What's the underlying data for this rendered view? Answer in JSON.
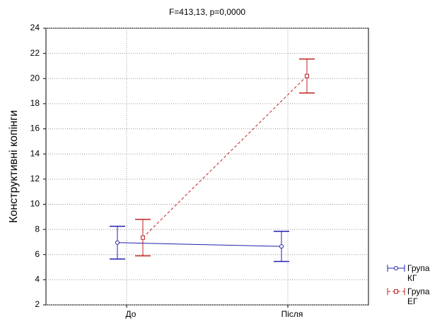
{
  "chart_data": {
    "type": "line",
    "title": "F=413,13, p=0,0000",
    "y_label": "Конструктивні копінги",
    "categories": [
      "До",
      "Після"
    ],
    "series": [
      {
        "name": "Група КГ",
        "color": "#2020b0",
        "values": [
          6.95,
          6.65
        ],
        "errors": [
          1.3,
          1.2
        ],
        "marker": "circle",
        "dash": false
      },
      {
        "name": "Група ЕГ",
        "color": "#c02020",
        "values": [
          7.35,
          20.2
        ],
        "errors": [
          1.45,
          1.35
        ],
        "marker": "square",
        "dash": true
      }
    ],
    "ylim": [
      2,
      24
    ],
    "yticks": [
      2,
      4,
      6,
      8,
      10,
      12,
      14,
      16,
      18,
      20,
      22,
      24
    ],
    "grid": true
  }
}
